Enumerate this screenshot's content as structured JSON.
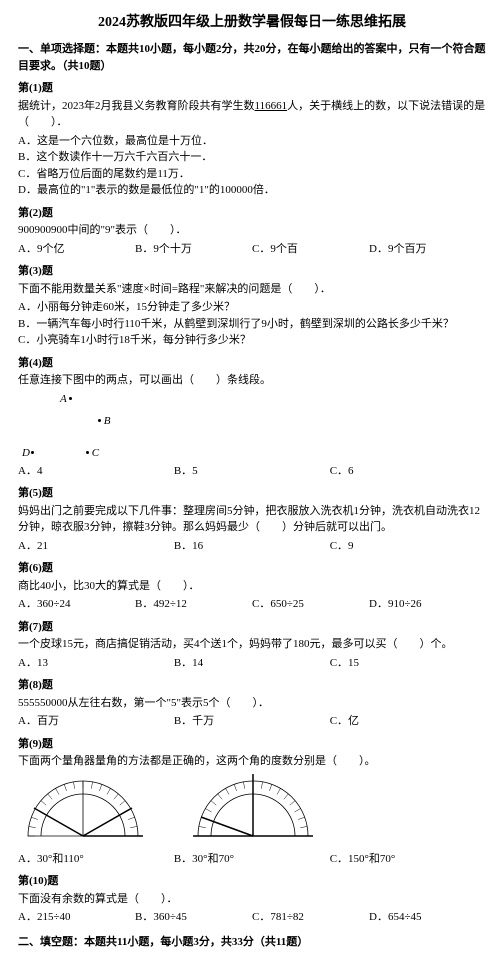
{
  "title": "2024苏教版四年级上册数学暑假每日一练思维拓展",
  "section1": "一、单项选择题：本题共10小题，每小题2分，共20分，在每小题给出的答案中，只有一个符合题目要求。（共10题）",
  "q1": {
    "num": "第(1)题",
    "text_a": "据统计，2023年2月我县义务教育阶段共有学生数",
    "text_underline": "116661",
    "text_b": "人，关于横线上的数，以下说法错误的是（　　）．",
    "a": "A．这是一个六位数，最高位是十万位．",
    "b": "B．这个数读作十一万六千六百六十一．",
    "c": "C．省略万位后面的尾数约是11万．",
    "d": "D．最高位的\"1\"表示的数是最低位的\"1\"的100000倍．"
  },
  "q2": {
    "num": "第(2)题",
    "text": "900900900中间的\"9\"表示（　　）．",
    "a": "A．9个亿",
    "b": "B．9个十万",
    "c": "C．9个百",
    "d": "D．9个百万"
  },
  "q3": {
    "num": "第(3)题",
    "text": "下面不能用数量关系\"速度×时间=路程\"来解决的问题是（　　）．",
    "a": "A．小丽每分钟走60米，15分钟走了多少米？",
    "b": "B．一辆汽车每小时行110千米，从鹤壁到深圳行了9小时，鹤壁到深圳的公路长多少千米？",
    "c": "C．小亮骑车1小时行18千米，每分钟行多少米？"
  },
  "q4": {
    "num": "第(4)题",
    "text": "任意连接下图中的两点，可以画出（　　）条线段。",
    "a": "A．4",
    "b": "B．5",
    "c": "C．6",
    "labels": {
      "A": "A",
      "B": "B",
      "C": "C",
      "D": "D"
    }
  },
  "q5": {
    "num": "第(5)题",
    "text": "妈妈出门之前要完成以下几件事：整理房间5分钟，把衣服放入洗衣机1分钟，洗衣机自动洗衣12分钟，晾衣服3分钟，擦鞋3分钟。那么妈妈最少（　　）分钟后就可以出门。",
    "a": "A．21",
    "b": "B．16",
    "c": "C．9"
  },
  "q6": {
    "num": "第(6)题",
    "text": "商比40小，比30大的算式是（　　）．",
    "a": "A．360÷24",
    "b": "B．492÷12",
    "c": "C．650÷25",
    "d": "D．910÷26"
  },
  "q7": {
    "num": "第(7)题",
    "text": "一个皮球15元，商店搞促销活动，买4个送1个，妈妈带了180元，最多可以买（　　）个。",
    "a": "A．13",
    "b": "B．14",
    "c": "C．15"
  },
  "q8": {
    "num": "第(8)题",
    "text": "555550000从左往右数，第一个\"5\"表示5个（　　）．",
    "a": "A．百万",
    "b": "B．千万",
    "c": "C．亿"
  },
  "q9": {
    "num": "第(9)题",
    "text": "下面两个量角器量角的方法都是正确的，这两个角的度数分别是（　　）。",
    "a": "A．30°和110°",
    "b": "B．30°和70°",
    "c": "C．150°和70°"
  },
  "q10": {
    "num": "第(10)题",
    "text": "下面没有余数的算式是（　　）．",
    "a": "A．215÷40",
    "b": "B．360÷45",
    "c": "C．781÷82",
    "d": "D．654÷45"
  },
  "section2": "二、填空题：本题共11小题，每小题3分，共33分（共11题）",
  "protractor": {
    "outer_r": 55,
    "inner_r": 42,
    "stroke": "#000000",
    "fill": "#ffffff",
    "angle1_a": 30,
    "angle1_b": 150,
    "angle2_a": 20,
    "angle2_b": 90
  }
}
